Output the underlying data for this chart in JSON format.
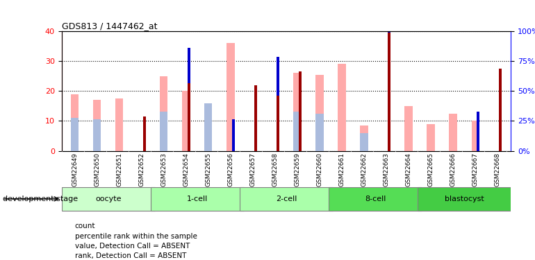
{
  "title": "GDS813 / 1447462_at",
  "samples": [
    "GSM22649",
    "GSM22650",
    "GSM22651",
    "GSM22652",
    "GSM22653",
    "GSM22654",
    "GSM22655",
    "GSM22656",
    "GSM22657",
    "GSM22658",
    "GSM22659",
    "GSM22660",
    "GSM22661",
    "GSM22662",
    "GSM22663",
    "GSM22664",
    "GSM22665",
    "GSM22666",
    "GSM22667",
    "GSM22668"
  ],
  "count_values": [
    0,
    0,
    0,
    11.5,
    0,
    22.5,
    0,
    0,
    22,
    18.5,
    26.5,
    0,
    0,
    0,
    39.5,
    0,
    0,
    0,
    0,
    27.5
  ],
  "percentile_values": [
    0,
    0,
    0,
    0,
    0,
    12,
    0,
    10.5,
    0,
    13,
    0,
    0,
    0,
    0,
    15.5,
    0,
    0,
    0,
    13,
    0
  ],
  "absent_value_values": [
    19,
    17,
    17.5,
    0,
    25,
    20,
    12.5,
    36,
    0,
    0,
    26,
    25.5,
    29,
    8.5,
    0,
    15,
    9,
    12.5,
    10,
    0
  ],
  "absent_rank_values": [
    11,
    10.5,
    0,
    0,
    13,
    0,
    16,
    0,
    0,
    0,
    13,
    12.5,
    0,
    6,
    0,
    0,
    0,
    0,
    0,
    0
  ],
  "stages": [
    {
      "label": "oocyte",
      "start": 0,
      "end": 4,
      "color": "#ccffcc"
    },
    {
      "label": "1-cell",
      "start": 4,
      "end": 8,
      "color": "#aaffaa"
    },
    {
      "label": "2-cell",
      "start": 8,
      "end": 12,
      "color": "#aaffaa"
    },
    {
      "label": "8-cell",
      "start": 12,
      "end": 16,
      "color": "#55dd55"
    },
    {
      "label": "blastocyst",
      "start": 16,
      "end": 20,
      "color": "#44cc44"
    }
  ],
  "ylim_left": [
    0,
    40
  ],
  "ylim_right": [
    0,
    100
  ],
  "yticks_left": [
    0,
    10,
    20,
    30,
    40
  ],
  "yticks_right": [
    0,
    25,
    50,
    75,
    100
  ],
  "color_count": "#990000",
  "color_percentile": "#0000cc",
  "color_absent_value": "#ffaaaa",
  "color_absent_rank": "#aabbdd",
  "legend_labels": [
    "count",
    "percentile rank within the sample",
    "value, Detection Call = ABSENT",
    "rank, Detection Call = ABSENT"
  ],
  "xlabel_stage": "development stage"
}
